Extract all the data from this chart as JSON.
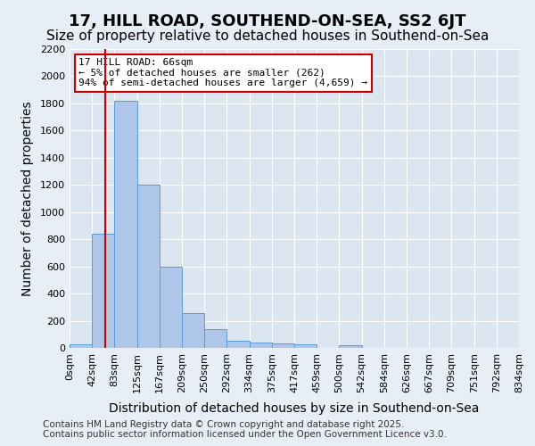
{
  "title": "17, HILL ROAD, SOUTHEND-ON-SEA, SS2 6JT",
  "subtitle": "Size of property relative to detached houses in Southend-on-Sea",
  "xlabel": "Distribution of detached houses by size in Southend-on-Sea",
  "ylabel": "Number of detached properties",
  "bin_labels": [
    "0sqm",
    "42sqm",
    "83sqm",
    "125sqm",
    "167sqm",
    "209sqm",
    "250sqm",
    "292sqm",
    "334sqm",
    "375sqm",
    "417sqm",
    "459sqm",
    "500sqm",
    "542sqm",
    "584sqm",
    "626sqm",
    "667sqm",
    "709sqm",
    "751sqm",
    "792sqm",
    "834sqm"
  ],
  "bar_values": [
    25,
    840,
    1820,
    1200,
    600,
    255,
    135,
    50,
    40,
    30,
    25,
    0,
    20,
    0,
    0,
    0,
    0,
    0,
    0,
    0
  ],
  "bar_color": "#aec6e8",
  "bar_edge_color": "#5b9bd5",
  "property_line_color": "#cc0000",
  "annotation_title": "17 HILL ROAD: 66sqm",
  "annotation_line1": "← 5% of detached houses are smaller (262)",
  "annotation_line2": "94% of semi-detached houses are larger (4,659) →",
  "annotation_box_color": "#cc0000",
  "ylim": [
    0,
    2200
  ],
  "yticks": [
    0,
    200,
    400,
    600,
    800,
    1000,
    1200,
    1400,
    1600,
    1800,
    2000,
    2200
  ],
  "footer_line1": "Contains HM Land Registry data © Crown copyright and database right 2025.",
  "footer_line2": "Contains public sector information licensed under the Open Government Licence v3.0.",
  "background_color": "#e8eef5",
  "plot_background_color": "#dce6f0",
  "grid_color": "#ffffff",
  "title_fontsize": 13,
  "subtitle_fontsize": 11,
  "axis_label_fontsize": 10,
  "tick_fontsize": 8,
  "footer_fontsize": 7.5
}
